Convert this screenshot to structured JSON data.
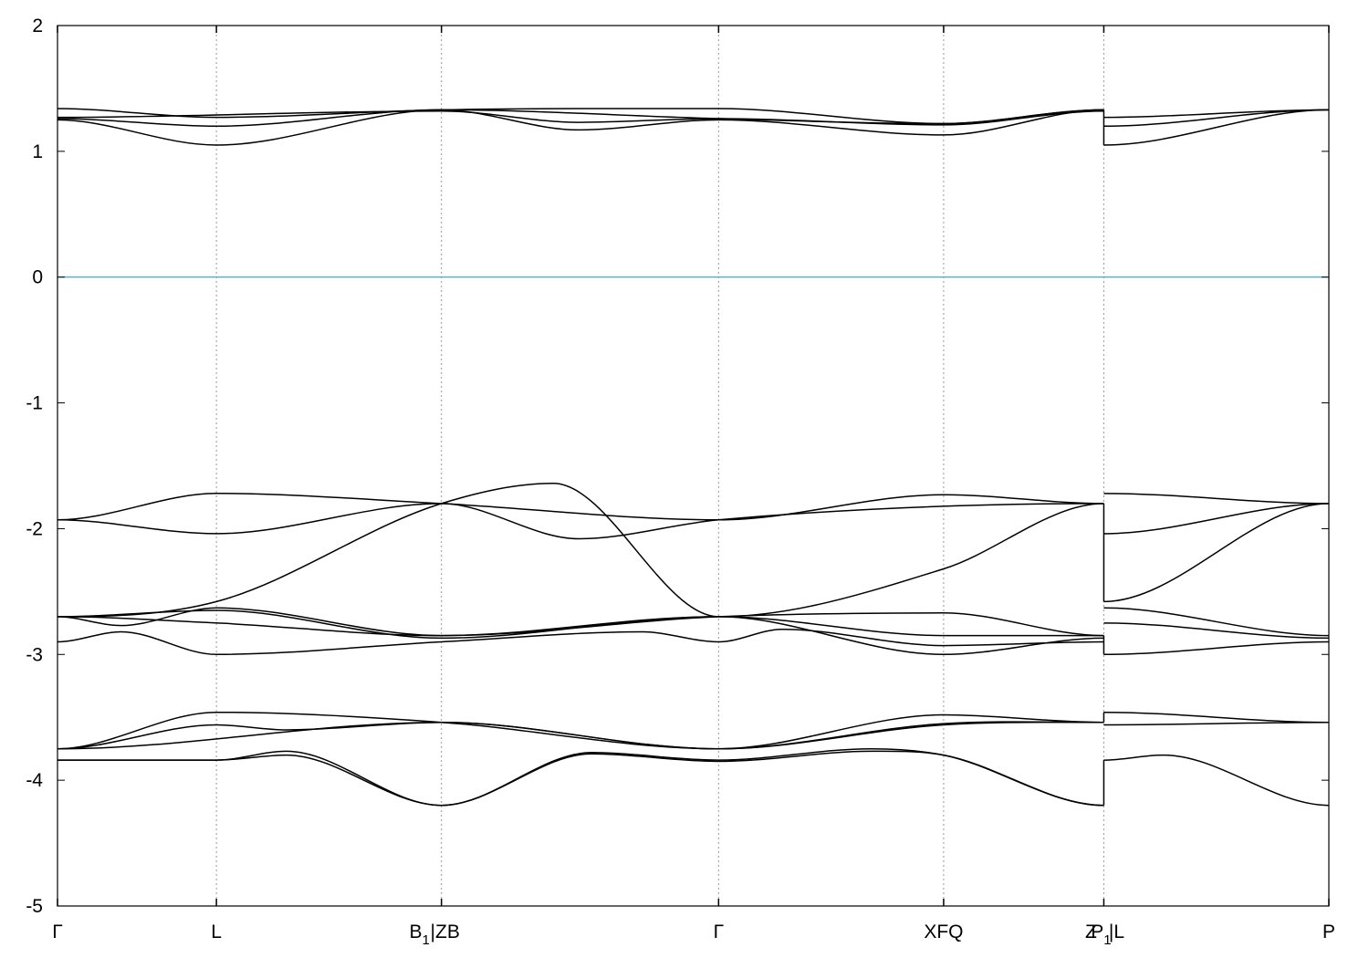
{
  "chart_data": {
    "type": "line",
    "title": "",
    "xlabel": "",
    "ylabel": "",
    "ylim": [
      -5,
      2
    ],
    "yticks": [
      -5,
      -4,
      -3,
      -2,
      -1,
      0,
      1,
      2
    ],
    "grid": "vertical dotted lines at high-symmetry points",
    "fermi_level": {
      "y": 0,
      "color": "#4fb3cf"
    },
    "line_color": "#000000",
    "kpoints": [
      {
        "x": 0.0,
        "label": "Γ",
        "sub": ""
      },
      {
        "x": 0.125,
        "label": "L",
        "sub": ""
      },
      {
        "x": 0.302,
        "label": "B",
        "sub": "1"
      },
      {
        "x": 0.302,
        "label": "ZB",
        "sub": "",
        "prefix": "|"
      },
      {
        "x": 0.52,
        "label": "Γ",
        "sub": ""
      },
      {
        "x": 0.697,
        "label": "XFQ",
        "sub": ""
      },
      {
        "x": 0.823,
        "label": "Z",
        "sub": ""
      },
      {
        "x": 0.823,
        "label": "P",
        "sub": "1"
      },
      {
        "x": 0.823,
        "label": "L",
        "sub": "",
        "prefix": "|"
      },
      {
        "x": 1.0,
        "label": "P",
        "sub": ""
      }
    ],
    "series": [
      {
        "x": [
          0,
          0.125,
          0.302,
          0.52,
          0.697,
          0.823
        ],
        "y": [
          1.34,
          1.27,
          1.33,
          1.34,
          1.22,
          1.33
        ]
      },
      {
        "x": [
          0,
          0.125,
          0.302,
          0.52,
          0.697,
          0.823
        ],
        "y": [
          1.26,
          1.2,
          1.33,
          1.26,
          1.22,
          1.33
        ]
      },
      {
        "x": [
          0,
          0.125,
          0.302,
          0.41,
          0.52,
          0.697,
          0.823
        ],
        "y": [
          1.25,
          1.05,
          1.33,
          1.17,
          1.25,
          1.13,
          1.33
        ]
      },
      {
        "x": [
          0,
          0.302,
          0.41,
          0.52,
          0.697,
          0.823
        ],
        "y": [
          1.27,
          1.32,
          1.23,
          1.26,
          1.21,
          1.32
        ]
      },
      {
        "x": [
          0.823,
          1.0
        ],
        "y": [
          1.27,
          1.33
        ]
      },
      {
        "x": [
          0.823,
          1.0
        ],
        "y": [
          1.2,
          1.33
        ]
      },
      {
        "x": [
          0.823,
          1.0
        ],
        "y": [
          1.05,
          1.33
        ]
      },
      {
        "x": [
          0,
          0.125,
          0.302,
          0.52,
          0.697,
          0.823
        ],
        "y": [
          -1.93,
          -1.72,
          -1.8,
          -1.93,
          -1.73,
          -1.8
        ]
      },
      {
        "x": [
          0,
          0.125,
          0.302,
          0.41,
          0.52,
          0.823
        ],
        "y": [
          -1.93,
          -2.04,
          -1.8,
          -2.08,
          -1.93,
          -1.8
        ]
      },
      {
        "x": [
          0,
          0.125,
          0.302,
          0.39,
          0.52,
          0.697,
          0.823
        ],
        "y": [
          -2.7,
          -2.58,
          -1.8,
          -1.64,
          -2.7,
          -2.32,
          -1.8
        ]
      },
      {
        "x": [
          0,
          0.05,
          0.125,
          0.302,
          0.52,
          0.697,
          0.823
        ],
        "y": [
          -2.7,
          -2.77,
          -2.63,
          -2.85,
          -2.7,
          -2.67,
          -2.85
        ]
      },
      {
        "x": [
          0,
          0.125,
          0.302,
          0.52,
          0.697,
          0.823
        ],
        "y": [
          -2.7,
          -2.75,
          -2.85,
          -2.7,
          -2.85,
          -2.85
        ]
      },
      {
        "x": [
          0,
          0.125,
          0.302,
          0.52,
          0.697,
          0.823
        ],
        "y": [
          -2.7,
          -2.65,
          -2.87,
          -2.7,
          -3.0,
          -2.87
        ]
      },
      {
        "x": [
          0,
          0.05,
          0.125,
          0.302,
          0.46,
          0.52,
          0.57,
          0.697,
          0.823
        ],
        "y": [
          -2.9,
          -2.82,
          -3.0,
          -2.9,
          -2.82,
          -2.9,
          -2.8,
          -2.93,
          -2.9
        ]
      },
      {
        "x": [
          0.823,
          1.0
        ],
        "y": [
          -1.72,
          -1.8
        ]
      },
      {
        "x": [
          0.823,
          1.0
        ],
        "y": [
          -2.04,
          -1.8
        ]
      },
      {
        "x": [
          0.823,
          1.0
        ],
        "y": [
          -2.58,
          -1.8
        ]
      },
      {
        "x": [
          0.823,
          1.0
        ],
        "y": [
          -2.63,
          -2.85
        ]
      },
      {
        "x": [
          0.823,
          1.0
        ],
        "y": [
          -2.75,
          -2.87
        ]
      },
      {
        "x": [
          0.823,
          1.0
        ],
        "y": [
          -3.0,
          -2.9
        ]
      },
      {
        "x": [
          0,
          0.125,
          0.302,
          0.52,
          0.697,
          0.823
        ],
        "y": [
          -3.75,
          -3.46,
          -3.54,
          -3.75,
          -3.48,
          -3.54
        ]
      },
      {
        "x": [
          0,
          0.125,
          0.18,
          0.302,
          0.52,
          0.697,
          0.823
        ],
        "y": [
          -3.75,
          -3.56,
          -3.6,
          -3.54,
          -3.75,
          -3.56,
          -3.54
        ]
      },
      {
        "x": [
          0,
          0.302,
          0.52,
          0.697,
          0.823
        ],
        "y": [
          -3.75,
          -3.54,
          -3.75,
          -3.55,
          -3.54
        ]
      },
      {
        "x": [
          0,
          0.125,
          0.18,
          0.302,
          0.42,
          0.52,
          0.64,
          0.697,
          0.823
        ],
        "y": [
          -3.84,
          -3.84,
          -3.77,
          -4.2,
          -3.78,
          -3.84,
          -3.75,
          -3.8,
          -4.2
        ]
      },
      {
        "x": [
          0,
          0.125,
          0.18,
          0.302,
          0.42,
          0.52,
          0.64,
          0.697,
          0.823
        ],
        "y": [
          -3.84,
          -3.84,
          -3.8,
          -4.2,
          -3.79,
          -3.85,
          -3.77,
          -3.8,
          -4.2
        ]
      },
      {
        "x": [
          0.823,
          1.0
        ],
        "y": [
          -3.46,
          -3.54
        ]
      },
      {
        "x": [
          0.823,
          1.0
        ],
        "y": [
          -3.56,
          -3.54
        ]
      },
      {
        "x": [
          0.823,
          0.87,
          1.0
        ],
        "y": [
          -3.84,
          -3.8,
          -4.2
        ]
      }
    ]
  }
}
